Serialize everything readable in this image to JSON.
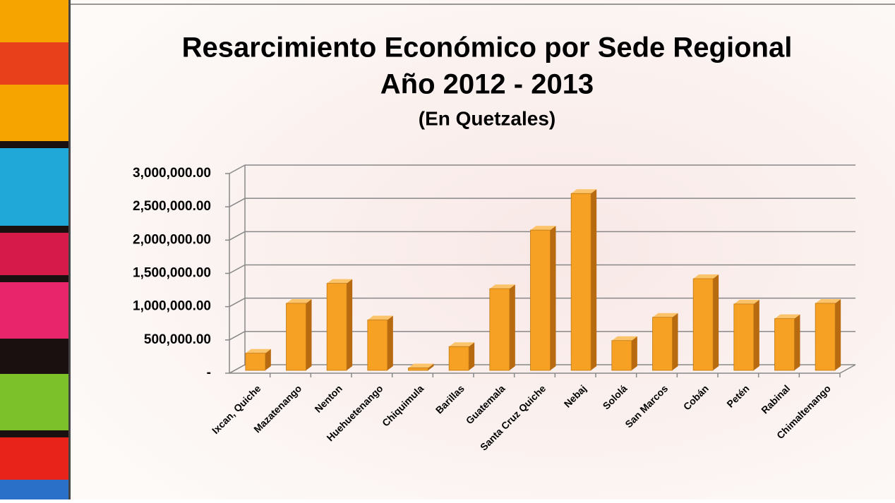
{
  "chart_data": {
    "type": "bar3d",
    "title": "Resarcimiento Económico por Sede Regional",
    "subtitle": "Año 2012 - 2013",
    "note": "(En Quetzales)",
    "categories": [
      "Ixcan, Quiche",
      "Mazatenango",
      "Nenton",
      "Huehuetenango",
      "Chiquimula",
      "Barillas",
      "Guatemala",
      "Santa Cruz Quiche",
      "Nebaj",
      "Sololá",
      "San Marcos",
      "Cobán",
      "Petén",
      "Rabinal",
      "Chimaltenango"
    ],
    "values": [
      300000,
      1050000,
      1350000,
      800000,
      80000,
      400000,
      1270000,
      2150000,
      2700000,
      490000,
      840000,
      1420000,
      1040000,
      820000,
      1050000
    ],
    "color": "#f7a124",
    "ylim": [
      0,
      3000000
    ],
    "yticks": [
      {
        "value": 0,
        "label": "-"
      },
      {
        "value": 500000,
        "label": "500,000.00"
      },
      {
        "value": 1000000,
        "label": "1,000,000.00"
      },
      {
        "value": 1500000,
        "label": "1,500,000.00"
      },
      {
        "value": 2000000,
        "label": "2,000,000.00"
      },
      {
        "value": 2500000,
        "label": "2,500,000.00"
      },
      {
        "value": 3000000,
        "label": "3,000,000.00"
      }
    ],
    "grid": true
  }
}
